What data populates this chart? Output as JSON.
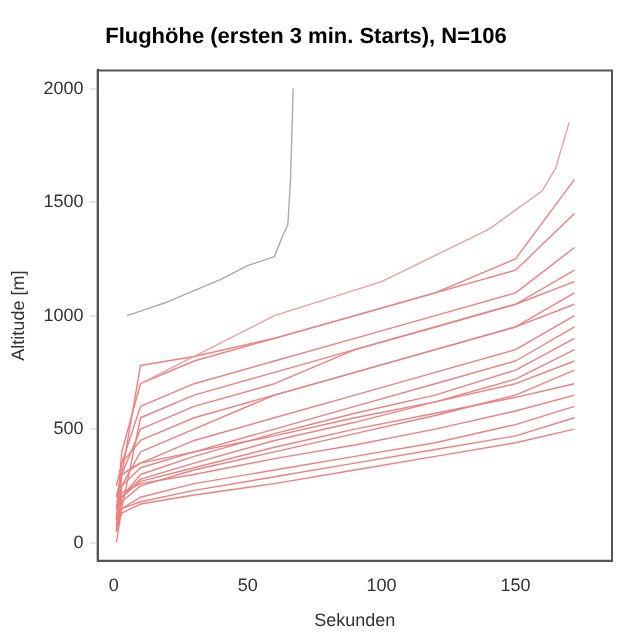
{
  "chart_data": {
    "type": "line",
    "title": "Flughöhe (ersten 3 min. Starts), N=106",
    "xlabel": "Sekunden",
    "ylabel": "Altitude [m]",
    "xlim": [
      -6,
      186
    ],
    "ylim": [
      -80,
      2080
    ],
    "xticks": [
      0,
      50,
      100,
      150
    ],
    "yticks": [
      0,
      500,
      1000,
      1500,
      2000
    ],
    "grid": false,
    "legend": false,
    "marker": "none",
    "line_style": "solid",
    "x": [
      1,
      3,
      10,
      30,
      60,
      90,
      120,
      150,
      172
    ],
    "series": [
      {
        "color": "#aaaaaa",
        "x": [
          5,
          10,
          20,
          30,
          40,
          50,
          55,
          60,
          63,
          65,
          66,
          67
        ],
        "values": [
          1000,
          1020,
          1060,
          1110,
          1160,
          1220,
          1240,
          1260,
          1350,
          1400,
          1600,
          2000
        ]
      },
      {
        "color": "#e8a0a0",
        "x": [
          10,
          60,
          100,
          140,
          160,
          165,
          170
        ],
        "values": [
          700,
          1000,
          1150,
          1380,
          1550,
          1650,
          1850
        ]
      },
      {
        "color": "#f08080",
        "values": [
          50,
          300,
          780,
          820,
          900,
          1000,
          1100,
          1250,
          1600
        ]
      },
      {
        "color": "#f08080",
        "values": [
          100,
          400,
          700,
          800,
          900,
          1000,
          1100,
          1200,
          1450
        ]
      },
      {
        "color": "#f08080",
        "values": [
          150,
          350,
          600,
          700,
          800,
          900,
          1000,
          1100,
          1300
        ]
      },
      {
        "color": "#f08080",
        "values": [
          100,
          300,
          500,
          600,
          700,
          850,
          950,
          1050,
          1200
        ]
      },
      {
        "color": "#f08080",
        "values": [
          50,
          250,
          400,
          500,
          650,
          750,
          850,
          950,
          1100
        ]
      },
      {
        "color": "#f08080",
        "values": [
          200,
          300,
          350,
          450,
          550,
          650,
          750,
          850,
          1000
        ]
      },
      {
        "color": "#f08080",
        "values": [
          150,
          250,
          330,
          400,
          500,
          600,
          700,
          800,
          950
        ]
      },
      {
        "color": "#f08080",
        "values": [
          100,
          200,
          300,
          380,
          480,
          570,
          650,
          760,
          900
        ]
      },
      {
        "color": "#f08080",
        "values": [
          50,
          200,
          280,
          350,
          450,
          530,
          620,
          720,
          850
        ]
      },
      {
        "color": "#f08080",
        "values": [
          200,
          300,
          350,
          400,
          470,
          550,
          620,
          700,
          800
        ]
      },
      {
        "color": "#f08080",
        "values": [
          80,
          180,
          250,
          320,
          400,
          480,
          560,
          650,
          760
        ]
      },
      {
        "color": "#f08080",
        "values": [
          100,
          200,
          270,
          330,
          420,
          500,
          570,
          640,
          700
        ]
      },
      {
        "color": "#f08080",
        "values": [
          150,
          220,
          260,
          300,
          370,
          430,
          500,
          580,
          650
        ]
      },
      {
        "color": "#f08080",
        "values": [
          50,
          150,
          200,
          260,
          320,
          380,
          440,
          520,
          600
        ]
      },
      {
        "color": "#f08080",
        "values": [
          100,
          150,
          180,
          230,
          290,
          350,
          410,
          470,
          550
        ]
      },
      {
        "color": "#f08080",
        "values": [
          60,
          130,
          170,
          210,
          260,
          320,
          380,
          440,
          500
        ]
      },
      {
        "color": "#f08080",
        "values": [
          0,
          150,
          550,
          650,
          750,
          850,
          950,
          1050,
          1150
        ]
      },
      {
        "color": "#f08080",
        "values": [
          250,
          350,
          450,
          550,
          650,
          750,
          850,
          950,
          1050
        ]
      }
    ]
  }
}
